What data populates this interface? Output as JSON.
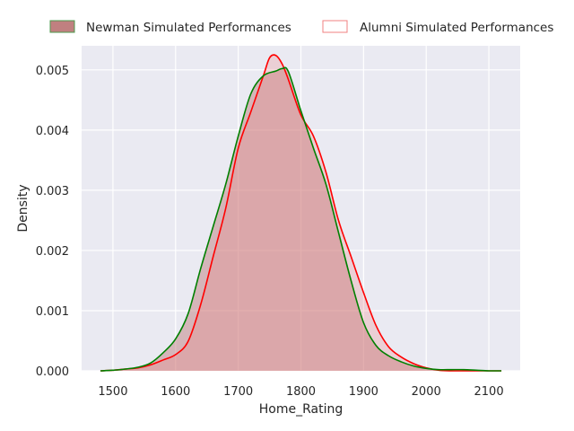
{
  "chart_data": {
    "type": "area",
    "xlabel": "Home_Rating",
    "ylabel": "Density",
    "xlim": [
      1450,
      2150
    ],
    "ylim": [
      0,
      0.0054
    ],
    "x_ticks": [
      1500,
      1600,
      1700,
      1800,
      1900,
      2000,
      2100
    ],
    "x_tick_labels": [
      "1500",
      "1600",
      "1700",
      "1800",
      "1900",
      "2000",
      "2100"
    ],
    "y_ticks": [
      0,
      0.001,
      0.002,
      0.003,
      0.004,
      0.005
    ],
    "y_tick_labels": [
      "0.000",
      "0.001",
      "0.002",
      "0.003",
      "0.004",
      "0.005"
    ],
    "grid": true,
    "legend_position": "top",
    "series": [
      {
        "name": "Newman Simulated Performances",
        "color": "#008000",
        "fill": "#c08080",
        "x": [
          1480,
          1500,
          1520,
          1540,
          1560,
          1580,
          1600,
          1620,
          1640,
          1660,
          1680,
          1700,
          1720,
          1740,
          1760,
          1770,
          1780,
          1800,
          1820,
          1840,
          1860,
          1880,
          1900,
          1920,
          1940,
          1960,
          1980,
          2000,
          2020,
          2040,
          2060,
          2080,
          2100,
          2120
        ],
        "y": [
          0.0,
          1e-05,
          3e-05,
          6e-05,
          0.00013,
          0.0003,
          0.00053,
          0.00095,
          0.0017,
          0.0024,
          0.0031,
          0.0039,
          0.0046,
          0.0049,
          0.00498,
          0.00502,
          0.00497,
          0.00432,
          0.0037,
          0.0031,
          0.0023,
          0.0015,
          0.0008,
          0.00042,
          0.00025,
          0.00015,
          8e-05,
          4e-05,
          2e-05,
          2e-05,
          2e-05,
          1e-05,
          0.0,
          0.0
        ]
      },
      {
        "name": "Alumni Simulated Performances",
        "color": "#ff0000",
        "fill": "none",
        "x": [
          1480,
          1500,
          1520,
          1540,
          1560,
          1580,
          1600,
          1620,
          1640,
          1660,
          1680,
          1700,
          1720,
          1740,
          1750,
          1760,
          1770,
          1780,
          1800,
          1820,
          1840,
          1860,
          1880,
          1900,
          1920,
          1940,
          1960,
          1980,
          2000,
          2020,
          2040,
          2060,
          2080,
          2100,
          2120
        ],
        "y": [
          0.0,
          1e-05,
          3e-05,
          5e-05,
          0.0001,
          0.00018,
          0.00027,
          0.00049,
          0.0011,
          0.0019,
          0.0027,
          0.0037,
          0.0043,
          0.0049,
          0.0052,
          0.00524,
          0.0051,
          0.00484,
          0.00425,
          0.0039,
          0.0033,
          0.0025,
          0.0019,
          0.0013,
          0.00075,
          0.0004,
          0.00023,
          0.00012,
          5e-05,
          1e-05,
          0.0,
          0.0,
          0.0,
          0.0,
          0.0
        ]
      }
    ]
  }
}
